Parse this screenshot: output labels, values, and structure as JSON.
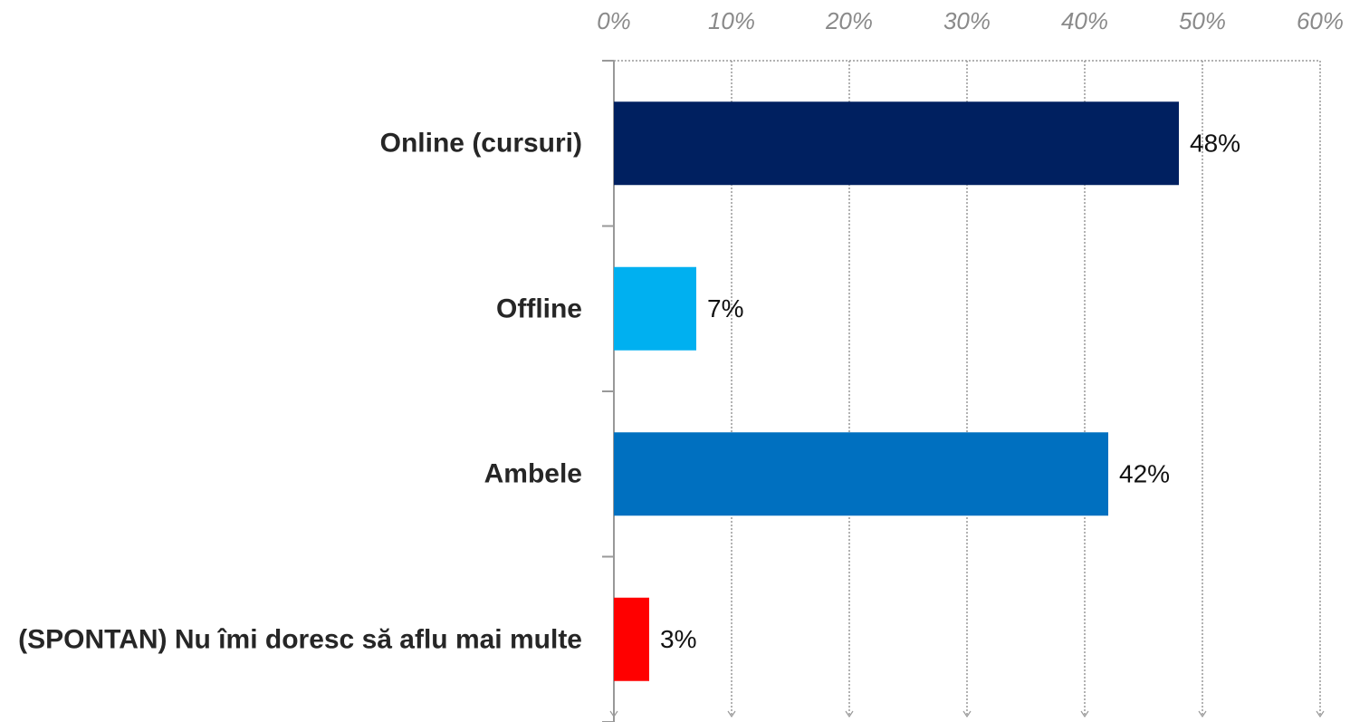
{
  "chart_data": {
    "type": "bar",
    "orientation": "horizontal",
    "categories": [
      "Online (cursuri)",
      "Offline",
      "Ambele",
      "(SPONTAN) Nu îmi doresc să aflu mai multe"
    ],
    "values": [
      48,
      7,
      42,
      3
    ],
    "value_labels": [
      "48%",
      "7%",
      "42%",
      "3%"
    ],
    "colors": [
      "#002060",
      "#00b0f0",
      "#0070c0",
      "#ff0000"
    ],
    "xlim": [
      0,
      60
    ],
    "xticks": [
      {
        "value": 0,
        "label": "0%"
      },
      {
        "value": 10,
        "label": "10%"
      },
      {
        "value": 20,
        "label": "20%"
      },
      {
        "value": 30,
        "label": "30%"
      },
      {
        "value": 40,
        "label": "40%"
      },
      {
        "value": 50,
        "label": "50%"
      },
      {
        "value": 60,
        "label": "60%"
      }
    ],
    "grid": true
  }
}
